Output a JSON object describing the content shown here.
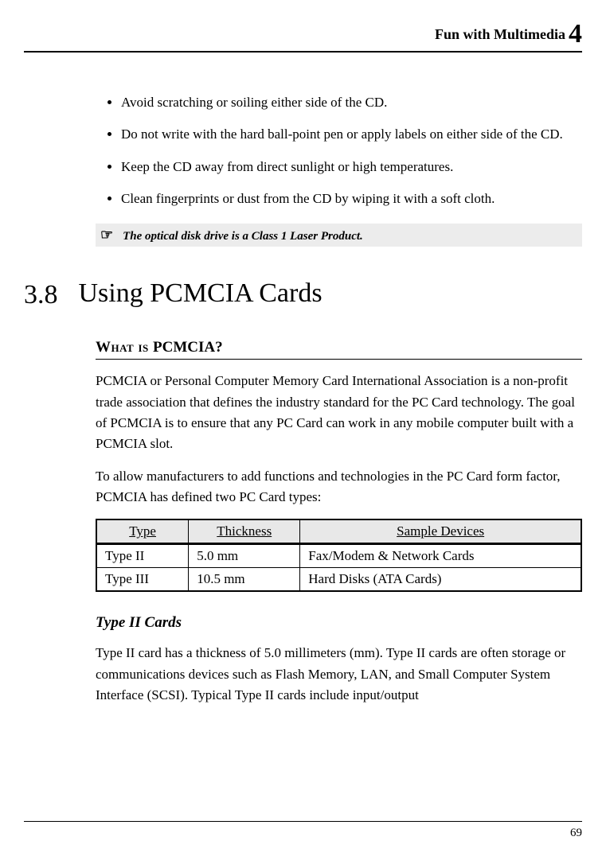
{
  "header": {
    "chapter_title": "Fun with Multimedia",
    "chapter_number": "4"
  },
  "bullets": [
    "Avoid scratching or soiling either side of the CD.",
    "Do not write with the hard ball-point pen or apply labels on either side of the CD.",
    "Keep the CD away from direct sunlight or high temperatures.",
    "Clean fingerprints or dust from the CD by wiping it with a soft cloth."
  ],
  "note": {
    "icon": "☞",
    "text": "The optical disk drive is a Class 1 Laser Product."
  },
  "section": {
    "number": "3.8",
    "title": "Using PCMCIA Cards"
  },
  "subsection": {
    "prefix": "What is ",
    "term": "PCMCIA?"
  },
  "para1": "PCMCIA or Personal Computer Memory Card International Association is a non-profit trade association that defines the industry standard for the PC Card technology. The goal of PCMCIA is to ensure that any PC Card can work in any mobile computer built with a PCMCIA slot.",
  "para2": "To allow manufacturers to add functions and technologies in the PC Card form factor, PCMCIA has defined two PC Card types:",
  "table": {
    "columns": [
      "Type",
      "Thickness",
      "Sample Devices"
    ],
    "rows": [
      [
        "Type II",
        "5.0 mm",
        "Fax/Modem & Network Cards"
      ],
      [
        "Type III",
        "10.5 mm",
        "Hard Disks (ATA Cards)"
      ]
    ]
  },
  "subhead": "Type II Cards",
  "para3": "Type II card has a thickness of 5.0 millimeters (mm). Type II cards are often storage or communications devices such as Flash Memory, LAN, and Small Computer System Interface (SCSI). Typical Type II cards include input/output",
  "page_number": "69",
  "colors": {
    "background": "#ffffff",
    "text": "#000000",
    "note_bg": "#ececec",
    "table_header_bg": "#e8e8e8"
  },
  "fonts": {
    "body_family": "Garamond, Georgia, serif",
    "body_size_pt": 13,
    "section_title_size_pt": 26,
    "chapter_num_size_pt": 26
  }
}
